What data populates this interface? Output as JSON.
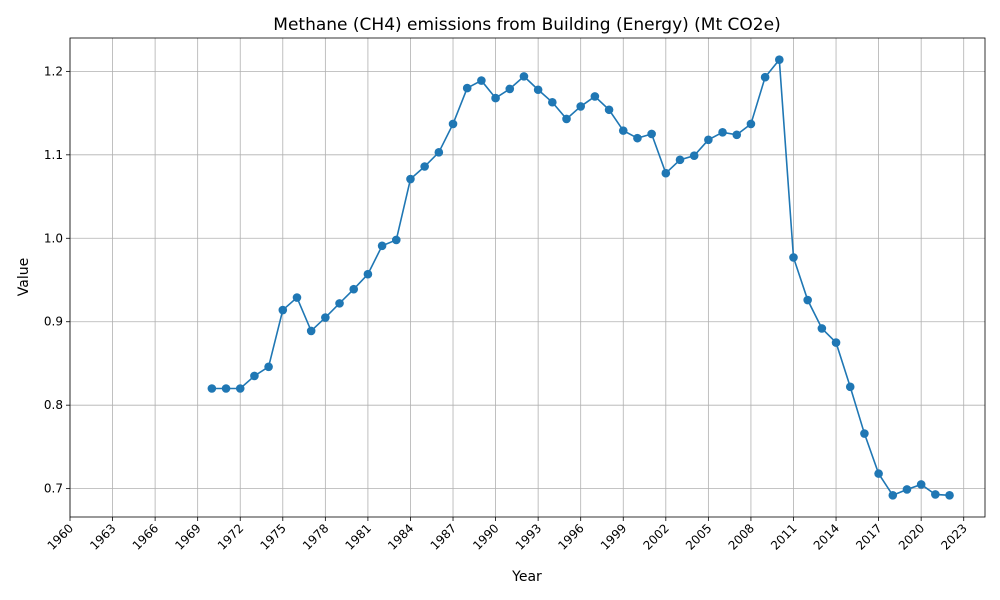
{
  "chart_data": {
    "type": "line",
    "title": "Methane (CH4) emissions from Building (Energy) (Mt CO2e)",
    "xlabel": "Year",
    "ylabel": "Value",
    "xlim": [
      1960,
      2024.5
    ],
    "ylim": [
      0.666,
      1.24
    ],
    "x_ticks": [
      1960,
      1963,
      1966,
      1969,
      1972,
      1975,
      1978,
      1981,
      1984,
      1987,
      1990,
      1993,
      1996,
      1999,
      2002,
      2005,
      2008,
      2011,
      2014,
      2017,
      2020,
      2023
    ],
    "y_ticks": [
      0.7,
      0.8,
      0.9,
      1.0,
      1.1,
      1.2
    ],
    "y_tick_labels": [
      "0.7",
      "0.8",
      "0.9",
      "1.0",
      "1.1",
      "1.2"
    ],
    "grid": true,
    "x_tick_rotation": "45deg",
    "color": "#1f77b4",
    "x": [
      1970,
      1971,
      1972,
      1973,
      1974,
      1975,
      1976,
      1977,
      1978,
      1979,
      1980,
      1981,
      1982,
      1983,
      1984,
      1985,
      1986,
      1987,
      1988,
      1989,
      1990,
      1991,
      1992,
      1993,
      1994,
      1995,
      1996,
      1997,
      1998,
      1999,
      2000,
      2001,
      2002,
      2003,
      2004,
      2005,
      2006,
      2007,
      2008,
      2009,
      2010,
      2011,
      2012,
      2013,
      2014,
      2015,
      2016,
      2017,
      2018,
      2019,
      2020,
      2021,
      2022
    ],
    "values": [
      0.82,
      0.82,
      0.82,
      0.835,
      0.846,
      0.914,
      0.929,
      0.889,
      0.905,
      0.922,
      0.939,
      0.957,
      0.991,
      0.998,
      1.071,
      1.086,
      1.103,
      1.137,
      1.18,
      1.189,
      1.168,
      1.179,
      1.194,
      1.178,
      1.163,
      1.143,
      1.158,
      1.17,
      1.154,
      1.129,
      1.12,
      1.125,
      1.078,
      1.094,
      1.099,
      1.118,
      1.127,
      1.124,
      1.137,
      1.193,
      1.214,
      0.977,
      0.926,
      0.892,
      0.875,
      0.822,
      0.766,
      0.718,
      0.692,
      0.699,
      0.705,
      0.693,
      0.692
    ]
  }
}
